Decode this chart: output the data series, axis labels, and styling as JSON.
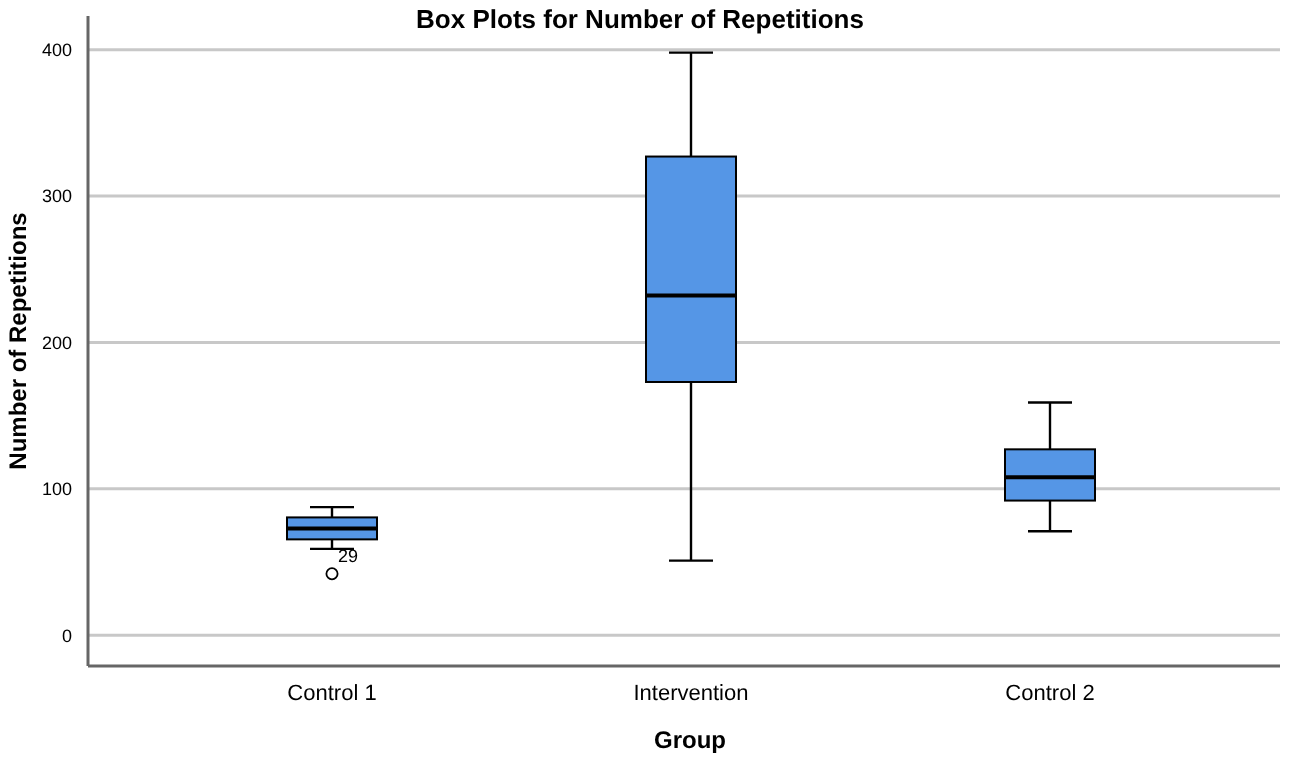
{
  "chart_data": {
    "type": "box",
    "title": "Box Plots for Number of Repetitions",
    "xlabel": "Group",
    "ylabel": "Number of Repetitions",
    "categories": [
      "Control 1",
      "Intervention",
      "Control 2"
    ],
    "boxes": [
      {
        "low": 59,
        "q1": 65.5,
        "median": 73,
        "q3": 80.5,
        "high": 87.5,
        "outliers": [
          42
        ]
      },
      {
        "low": 51,
        "q1": 173,
        "median": 232,
        "q3": 327,
        "high": 398
      },
      {
        "low": 71,
        "q1": 92,
        "median": 108,
        "q3": 127,
        "high": 159
      }
    ],
    "color": "#5596e6",
    "ylim": [
      -21,
      423
    ],
    "yticks": [
      0,
      100,
      200,
      300,
      400
    ],
    "grid": "y",
    "annotations": [
      "29"
    ]
  }
}
